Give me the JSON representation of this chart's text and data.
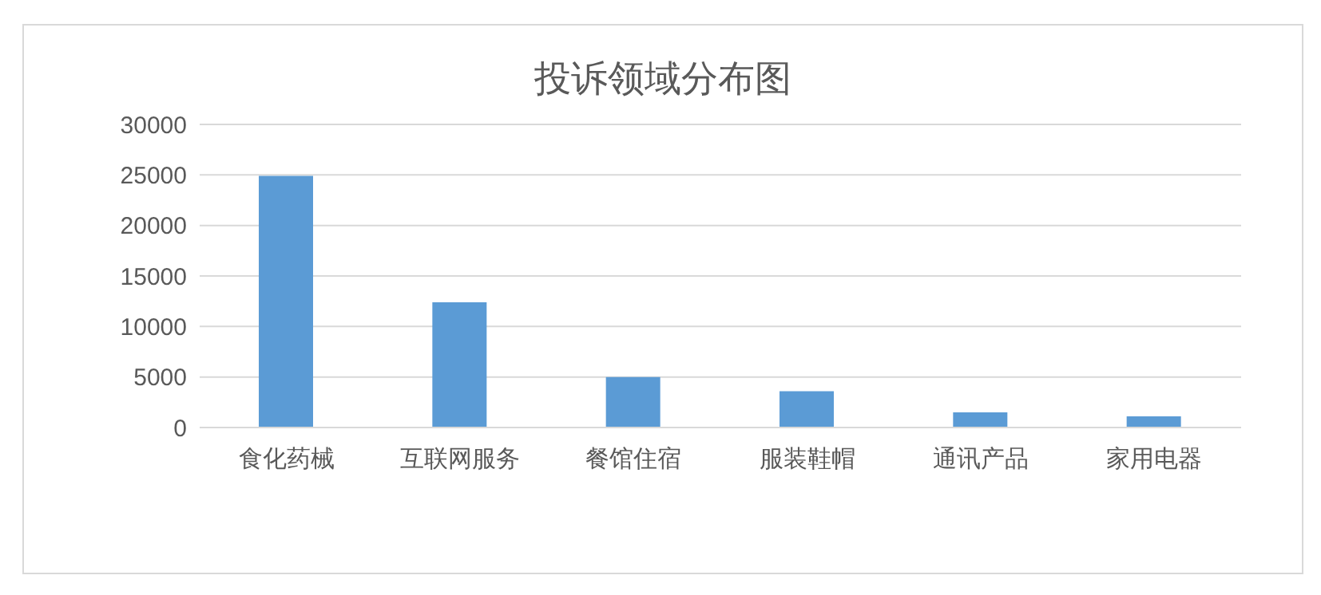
{
  "chart_data": {
    "type": "bar",
    "title": "投诉领域分布图",
    "categories": [
      "食化药械",
      "互联网服务",
      "餐馆住宿",
      "服装鞋帽",
      "通讯产品",
      "家用电器"
    ],
    "values": [
      24900,
      12400,
      5000,
      3600,
      1500,
      1100
    ],
    "color": "#5b9bd5",
    "ylim": [
      0,
      30000
    ],
    "yticks": [
      0,
      5000,
      10000,
      15000,
      20000,
      25000,
      30000
    ],
    "grid": "y",
    "legend": false
  }
}
